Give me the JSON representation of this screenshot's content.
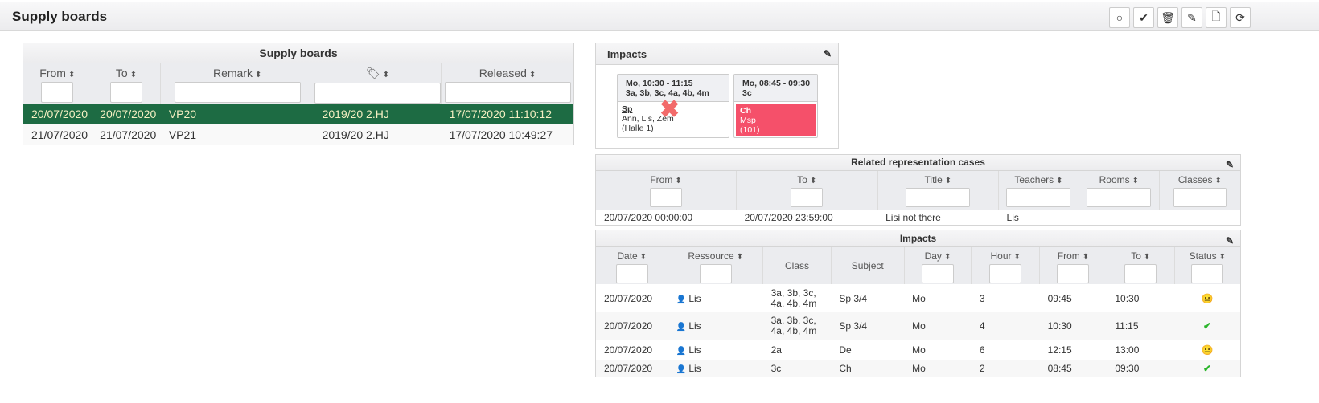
{
  "header": {
    "title": "Supply boards",
    "toolbar": [
      "circle-icon",
      "check-icon",
      "trash-icon",
      "pencil-icon",
      "file-icon",
      "refresh-icon"
    ]
  },
  "boards": {
    "title": "Supply boards",
    "columns": [
      "From",
      "To",
      "Remark",
      "",
      "Released"
    ],
    "rows": [
      [
        "20/07/2020",
        "20/07/2020",
        "VP20",
        "2019/20 2.HJ",
        "17/07/2020 11:10:12"
      ],
      [
        "21/07/2020",
        "21/07/2020",
        "VP21",
        "2019/20 2.HJ",
        "17/07/2020 10:49:27"
      ]
    ],
    "selected_row": 0,
    "selected_color": "#1d6b43"
  },
  "impacts_cards": {
    "title": "Impacts",
    "cards": [
      {
        "time": "Mo, 10:30 - 11:15",
        "classes": "3a, 3b, 3c, 4a, 4b, 4m",
        "subject": "Sp",
        "teachers": "Ann, Lis, Zem",
        "room": "(Halle 1)",
        "cancelled": true
      },
      {
        "time": "Mo, 08:45 - 09:30",
        "classes": "3c",
        "subject": "Ch",
        "teachers": "Msp",
        "room": "(101)",
        "color": "#f5506a"
      }
    ]
  },
  "related": {
    "title": "Related representation cases",
    "columns": [
      "From",
      "To",
      "Title",
      "Teachers",
      "Rooms",
      "Classes"
    ],
    "rows": [
      [
        "20/07/2020 00:00:00",
        "20/07/2020 23:59:00",
        "Lisi not there",
        "Lis",
        "",
        ""
      ]
    ]
  },
  "impacts": {
    "title": "Impacts",
    "columns": [
      "Date",
      "Ressource",
      "Class",
      "Subject",
      "Day",
      "Hour",
      "From",
      "To",
      "Status"
    ],
    "rows": [
      {
        "date": "20/07/2020",
        "res": "Lis",
        "class": "3a, 3b, 3c, 4a, 4b, 4m",
        "subject": "Sp 3/4",
        "day": "Mo",
        "hour": "3",
        "from": "09:45",
        "to": "10:30",
        "status": "neutral"
      },
      {
        "date": "20/07/2020",
        "res": "Lis",
        "class": "3a, 3b, 3c, 4a, 4b, 4m",
        "subject": "Sp 3/4",
        "day": "Mo",
        "hour": "4",
        "from": "10:30",
        "to": "11:15",
        "status": "ok"
      },
      {
        "date": "20/07/2020",
        "res": "Lis",
        "class": "2a",
        "subject": "De",
        "day": "Mo",
        "hour": "6",
        "from": "12:15",
        "to": "13:00",
        "status": "neutral"
      },
      {
        "date": "20/07/2020",
        "res": "Lis",
        "class": "3c",
        "subject": "Ch",
        "day": "Mo",
        "hour": "2",
        "from": "08:45",
        "to": "09:30",
        "status": "ok"
      }
    ]
  }
}
